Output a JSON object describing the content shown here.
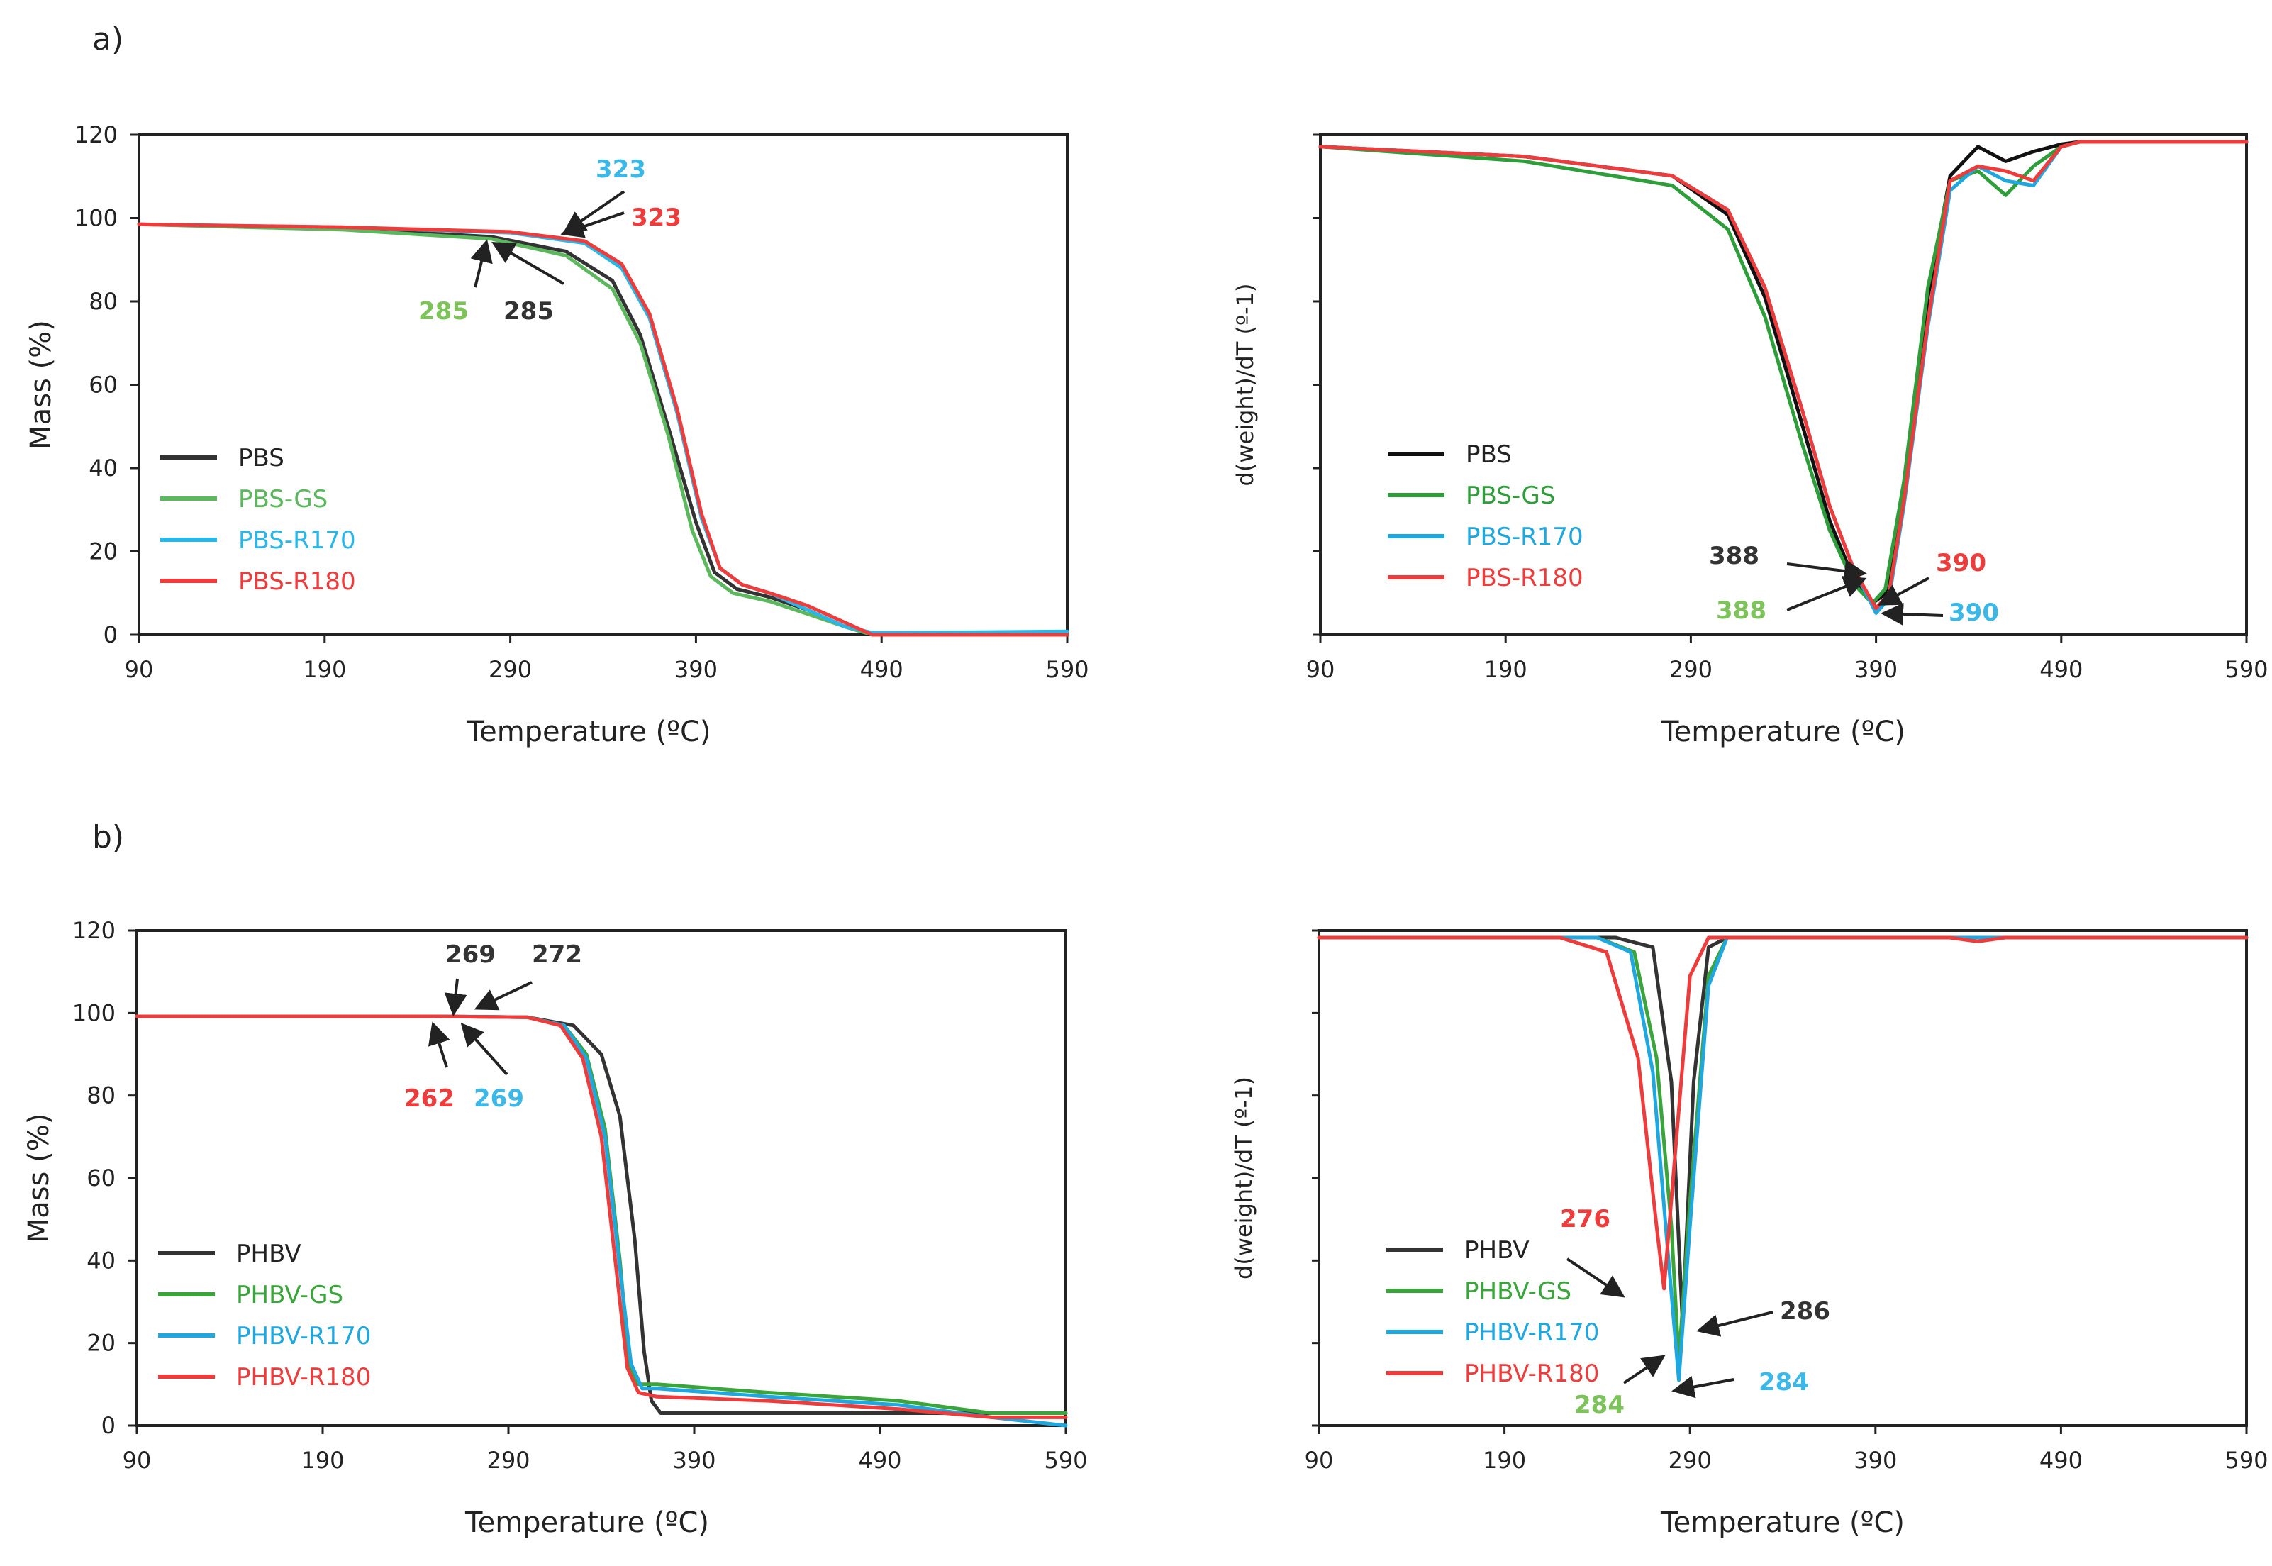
{
  "figure": {
    "panels": [
      {
        "label": "a)"
      },
      {
        "label": "b)"
      }
    ]
  },
  "colors": {
    "PBS": "#333333",
    "PBS-GS": "#5cb85c",
    "PBS-R170": "#29b6e8",
    "PBS-R180": "#ee3b3b",
    "PHBV": "#333333",
    "PHBV-GS": "#3aa53a",
    "PHBV-R170": "#1fa7e0",
    "PHBV-R180": "#ee3b3b",
    "legend_text_pbs": [
      "#222222",
      "#6cc04a",
      "#3bb8e8",
      "#ee3b3b"
    ],
    "legend_text_phbv": [
      "#222222",
      "#6cc04a",
      "#3bb8e8",
      "#ee3b3b"
    ],
    "label_black": "#333333",
    "label_green": "#7cc35a",
    "label_cyan": "#3bb8e8",
    "label_red": "#ee3b3b"
  },
  "chart_data": [
    {
      "id": "tga-pbs",
      "type": "line",
      "xlabel": "Temperature (ºC)",
      "ylabel": "Mass (%)",
      "xlim": [
        90,
        590
      ],
      "ylim": [
        0,
        120
      ],
      "xticks": [
        90,
        190,
        290,
        390,
        490,
        590
      ],
      "yticks": [
        0,
        20,
        40,
        60,
        80,
        100,
        120
      ],
      "legend": "mid-left",
      "series": [
        {
          "name": "PBS",
          "color": "#333333",
          "x": [
            90,
            200,
            280,
            320,
            345,
            360,
            375,
            390,
            400,
            412,
            430,
            450,
            470,
            485,
            500,
            590
          ],
          "y": [
            98.5,
            97.5,
            95.5,
            92,
            85,
            72,
            50,
            27,
            15,
            11,
            9,
            6,
            2,
            0,
            0,
            0
          ]
        },
        {
          "name": "PBS-GS",
          "color": "#5cb85c",
          "x": [
            90,
            200,
            280,
            320,
            345,
            360,
            375,
            388,
            398,
            410,
            430,
            450,
            470,
            485,
            500,
            590
          ],
          "y": [
            98.5,
            97.2,
            95,
            91,
            83,
            70,
            48,
            25,
            14,
            10,
            8,
            5,
            2,
            0,
            0,
            0
          ]
        },
        {
          "name": "PBS-R170",
          "color": "#29b6e8",
          "x": [
            90,
            200,
            290,
            330,
            350,
            365,
            380,
            393,
            403,
            415,
            430,
            450,
            470,
            485,
            500,
            590
          ],
          "y": [
            98.5,
            97.8,
            96.5,
            94,
            88,
            76,
            53,
            28,
            16,
            12,
            10,
            6,
            2,
            0.5,
            0.5,
            0.8
          ]
        },
        {
          "name": "PBS-R180",
          "color": "#ee3b3b",
          "x": [
            90,
            200,
            290,
            330,
            350,
            365,
            380,
            393,
            403,
            415,
            430,
            450,
            470,
            485,
            500,
            590
          ],
          "y": [
            98.5,
            97.8,
            96.7,
            94.5,
            89,
            77,
            54,
            29,
            16,
            12,
            10,
            7,
            3,
            0,
            0,
            0
          ]
        }
      ],
      "annotations": [
        {
          "text": "323",
          "color": "#3bb8e8"
        },
        {
          "text": "323",
          "color": "#ee3b3b"
        },
        {
          "text": "285",
          "color": "#7cc35a"
        },
        {
          "text": "285",
          "color": "#333333"
        }
      ]
    },
    {
      "id": "dtg-pbs",
      "type": "line",
      "xlabel": "Temperature (ºC)",
      "ylabel": "d(weight)/dT (º-1)",
      "xlim": [
        90,
        590
      ],
      "xticks": [
        90,
        190,
        290,
        390,
        490,
        590
      ],
      "legend": "mid-left",
      "series": [
        {
          "name": "PBS",
          "color": "#111111",
          "x": [
            90,
            200,
            280,
            310,
            330,
            350,
            365,
            378,
            388,
            395,
            405,
            418,
            430,
            445,
            460,
            475,
            490,
            500,
            590
          ],
          "y": [
            99,
            97,
            93,
            85,
            68,
            42,
            22,
            10,
            5,
            7,
            28,
            68,
            93,
            99,
            96,
            98,
            99.5,
            100,
            100
          ]
        },
        {
          "name": "PBS-GS",
          "color": "#2e9e3a",
          "x": [
            90,
            200,
            280,
            310,
            330,
            350,
            365,
            378,
            388,
            395,
            405,
            418,
            430,
            445,
            460,
            475,
            490,
            500,
            590
          ],
          "y": [
            99,
            96,
            91,
            82,
            64,
            38,
            20,
            9,
            5,
            8,
            30,
            70,
            92,
            94,
            89,
            95,
            99,
            100,
            100
          ]
        },
        {
          "name": "PBS-R170",
          "color": "#1fa7e0",
          "x": [
            90,
            200,
            280,
            310,
            330,
            350,
            365,
            378,
            390,
            397,
            405,
            418,
            430,
            445,
            460,
            475,
            490,
            500,
            590
          ],
          "y": [
            99,
            97,
            93,
            86,
            70,
            45,
            25,
            12,
            3,
            6,
            25,
            62,
            90,
            95,
            92,
            91,
            99,
            100,
            100
          ]
        },
        {
          "name": "PBS-R180",
          "color": "#ee3b3b",
          "x": [
            90,
            200,
            280,
            310,
            330,
            350,
            365,
            378,
            390,
            397,
            405,
            418,
            430,
            445,
            460,
            475,
            490,
            500,
            590
          ],
          "y": [
            99,
            97,
            93,
            86,
            70,
            45,
            25,
            12,
            4,
            7,
            26,
            63,
            92,
            95,
            94,
            92,
            99,
            100,
            100
          ]
        }
      ],
      "annotations": [
        {
          "text": "388",
          "color": "#333333"
        },
        {
          "text": "388",
          "color": "#7cc35a"
        },
        {
          "text": "390",
          "color": "#ee3b3b"
        },
        {
          "text": "390",
          "color": "#3bb8e8"
        }
      ]
    },
    {
      "id": "tga-phbv",
      "type": "line",
      "xlabel": "Temperature (ºC)",
      "ylabel": "Mass (%)",
      "xlim": [
        90,
        590
      ],
      "ylim": [
        0,
        120
      ],
      "xticks": [
        90,
        190,
        290,
        390,
        490,
        590
      ],
      "yticks": [
        0,
        20,
        40,
        60,
        80,
        100,
        120
      ],
      "legend": "mid-left",
      "series": [
        {
          "name": "PHBV",
          "color": "#333333",
          "x": [
            90,
            250,
            300,
            325,
            340,
            350,
            358,
            363,
            367,
            372,
            380,
            430,
            500,
            550,
            590
          ],
          "y": [
            99.2,
            99.2,
            99,
            97,
            90,
            75,
            45,
            18,
            6,
            3,
            3,
            3,
            3,
            3,
            3
          ]
        },
        {
          "name": "PHBV-GS",
          "color": "#3aa53a",
          "x": [
            90,
            250,
            300,
            320,
            332,
            342,
            350,
            355,
            360,
            370,
            430,
            500,
            550,
            590
          ],
          "y": [
            99.2,
            99.2,
            99,
            97,
            90,
            72,
            40,
            15,
            10,
            10,
            8,
            6,
            3,
            3
          ]
        },
        {
          "name": "PHBV-R170",
          "color": "#1fa7e0",
          "x": [
            90,
            250,
            300,
            320,
            332,
            342,
            350,
            356,
            362,
            370,
            430,
            500,
            550,
            590
          ],
          "y": [
            99.2,
            99.2,
            99,
            97,
            89,
            70,
            38,
            15,
            9,
            9,
            7,
            5,
            2,
            0
          ]
        },
        {
          "name": "PHBV-R180",
          "color": "#ee3b3b",
          "x": [
            90,
            250,
            300,
            318,
            330,
            340,
            348,
            354,
            360,
            370,
            430,
            500,
            550,
            590
          ],
          "y": [
            99.2,
            99.2,
            99,
            97,
            89,
            70,
            38,
            14,
            8,
            7,
            6,
            4,
            2,
            2
          ]
        }
      ],
      "annotations": [
        {
          "text": "269",
          "color": "#333333"
        },
        {
          "text": "272",
          "color": "#333333"
        },
        {
          "text": "262",
          "color": "#ee3b3b"
        },
        {
          "text": "269",
          "color": "#3bb8e8"
        }
      ]
    },
    {
      "id": "dtg-phbv",
      "type": "line",
      "xlabel": "Temperature (ºC)",
      "ylabel": "d(weight)/dT (º-1)",
      "xlim": [
        90,
        590
      ],
      "xticks": [
        90,
        190,
        290,
        390,
        490,
        590
      ],
      "legend": "mid-left",
      "series": [
        {
          "name": "PHBV",
          "color": "#333333",
          "x": [
            90,
            250,
            270,
            280,
            286,
            292,
            300,
            310,
            590
          ],
          "y": [
            100,
            100,
            98,
            70,
            20,
            70,
            98,
            100,
            100
          ]
        },
        {
          "name": "PHBV-GS",
          "color": "#3aa53a",
          "x": [
            90,
            240,
            260,
            272,
            280,
            284,
            290,
            300,
            310,
            590
          ],
          "y": [
            100,
            100,
            97,
            75,
            40,
            12,
            45,
            92,
            100,
            100
          ]
        },
        {
          "name": "PHBV-R170",
          "color": "#1fa7e0",
          "x": [
            90,
            240,
            258,
            270,
            278,
            284,
            290,
            300,
            310,
            590
          ],
          "y": [
            100,
            100,
            97,
            72,
            35,
            8,
            40,
            90,
            100,
            100
          ]
        },
        {
          "name": "PHBV-R180",
          "color": "#ee3b3b",
          "x": [
            90,
            220,
            245,
            262,
            272,
            276,
            282,
            290,
            300,
            430,
            445,
            460,
            590
          ],
          "y": [
            100,
            100,
            97,
            75,
            40,
            27,
            55,
            92,
            100,
            100,
            99.2,
            100,
            100
          ]
        }
      ],
      "annotations": [
        {
          "text": "276",
          "color": "#ee3b3b"
        },
        {
          "text": "286",
          "color": "#333333"
        },
        {
          "text": "284",
          "color": "#7cc35a"
        },
        {
          "text": "284",
          "color": "#3bb8e8"
        }
      ]
    }
  ]
}
